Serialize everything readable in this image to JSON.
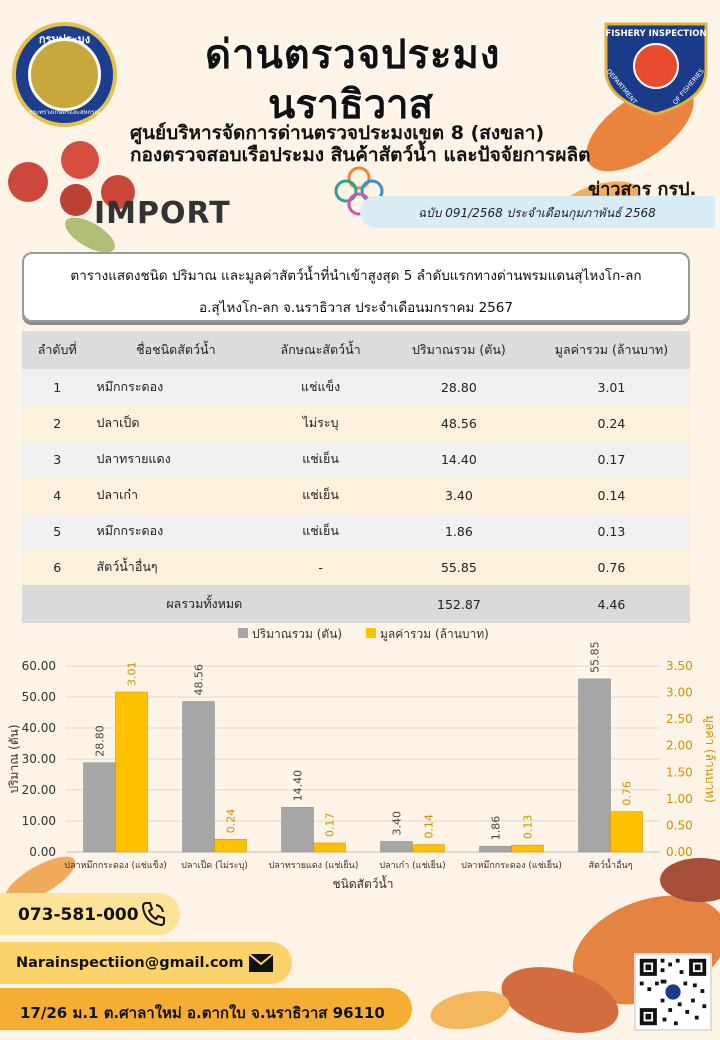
{
  "header": {
    "title_line1": "ด่านตรวจประมง",
    "title_line2": "นราธิวาส",
    "subtitle_line1": "ศูนย์บริหารจัดการด่านตรวจประมงเขต 8 (สงขลา)",
    "subtitle_line2": "กองตรวจสอบเรือประมง สินค้าสัตว์น้ำ และปัจจัยการผลิต",
    "logo_left_top": "กรมประมง",
    "logo_left_bottom": "กระทรวงเกษตรและสหกรณ์",
    "logo_right_top": "FISHERY INSPECTION",
    "logo_right_left": "DEPARTMENT",
    "logo_right_right": "OF FISHERIES",
    "news_label": "ข่าวสาร กรป.",
    "issue": "ฉบับ 091/2568 ประจำเดือนกุมภาพันธ์ 2568",
    "section": "IMPORT"
  },
  "description": {
    "line1": "ตารางแสดงชนิด ปริมาณ และมูลค่าสัตว์น้ำที่นำเข้าสูงสุด 5 ลำดับแรกทางด่านพรมแดนสุไหงโก-ลก",
    "line2": "อ.สุไหงโก-ลก จ.นราธิวาส ประจำเดือนมกราคม 2567"
  },
  "table": {
    "headers": [
      "ลำดับที่",
      "ชื่อชนิดสัตว์น้ำ",
      "ลักษณะสัตว์น้ำ",
      "ปริมาณรวม (ตัน)",
      "มูลค่ารวม (ล้านบาท)"
    ],
    "rows": [
      [
        "1",
        "หมึกกระดอง",
        "แช่แข็ง",
        "28.80",
        "3.01"
      ],
      [
        "2",
        "ปลาเป็ด",
        "ไม่ระบุ",
        "48.56",
        "0.24"
      ],
      [
        "3",
        "ปลาทรายแดง",
        "แช่เย็น",
        "14.40",
        "0.17"
      ],
      [
        "4",
        "ปลาเก๋า",
        "แช่เย็น",
        "3.40",
        "0.14"
      ],
      [
        "5",
        "หมึกกระดอง",
        "แช่เย็น",
        "1.86",
        "0.13"
      ],
      [
        "6",
        "สัตว์น้ำอื่นๆ",
        "-",
        "55.85",
        "0.76"
      ]
    ],
    "total_label": "ผลรวมทั้งหมด",
    "total_quantity": "152.87",
    "total_value": "4.46"
  },
  "chart_data": {
    "type": "bar",
    "categories": [
      "ปลาหมึกกระดอง (แช่แข็ง)",
      "ปลาเป็ด (ไม่ระบุ)",
      "ปลาทรายแดง (แช่เย็น)",
      "ปลาเก๋า (แช่เย็น)",
      "ปลาหมึกกระดอง (แช่เย็น)",
      "สัตว์น้ำอื่นๆ"
    ],
    "series": [
      {
        "name": "ปริมาณรวม (ตัน)",
        "values": [
          28.8,
          48.56,
          14.4,
          3.4,
          1.86,
          55.85
        ],
        "color": "#a6a6a6",
        "axis": "left"
      },
      {
        "name": "มูลค่ารวม (ล้านบาท)",
        "values": [
          3.01,
          0.24,
          0.17,
          0.14,
          0.13,
          0.76
        ],
        "color": "#ffc000",
        "axis": "right"
      }
    ],
    "data_labels_left": [
      "28.80",
      "48.56",
      "14.40",
      "3.40",
      "1.86",
      "55.85"
    ],
    "data_labels_right": [
      "3.01",
      "0.24",
      "0.17",
      "0.14",
      "0.13",
      "0.76"
    ],
    "xlabel": "ชนิดสัตว์น้ำ",
    "ylabel": "ปริมาณ (ตัน)",
    "y2label": "มูลค่า (ล้านบาท)",
    "ylim": [
      0,
      60
    ],
    "y2lim": [
      0,
      3.5
    ],
    "yticks": [
      "0.00",
      "10.00",
      "20.00",
      "30.00",
      "40.00",
      "50.00",
      "60.00"
    ],
    "y2ticks": [
      "0.00",
      "0.50",
      "1.00",
      "1.50",
      "2.00",
      "2.50",
      "3.00",
      "3.50"
    ],
    "grid": true,
    "legend": "top-center"
  },
  "footer": {
    "phone": "073-581-000",
    "email": "Narainspectiion@gmail.com",
    "address": "17/26 ม.1 ต.ศาลาใหม่ อ.ตากใบ จ.นราธิวาส 96110"
  },
  "colors": {
    "accent_gold": "#ffc000",
    "accent_orange": "#f6ad34",
    "bar_gray": "#a6a6a6"
  },
  "icons": {
    "phone": "phone-icon",
    "mail": "mail-icon",
    "qr": "qr-code-icon"
  }
}
